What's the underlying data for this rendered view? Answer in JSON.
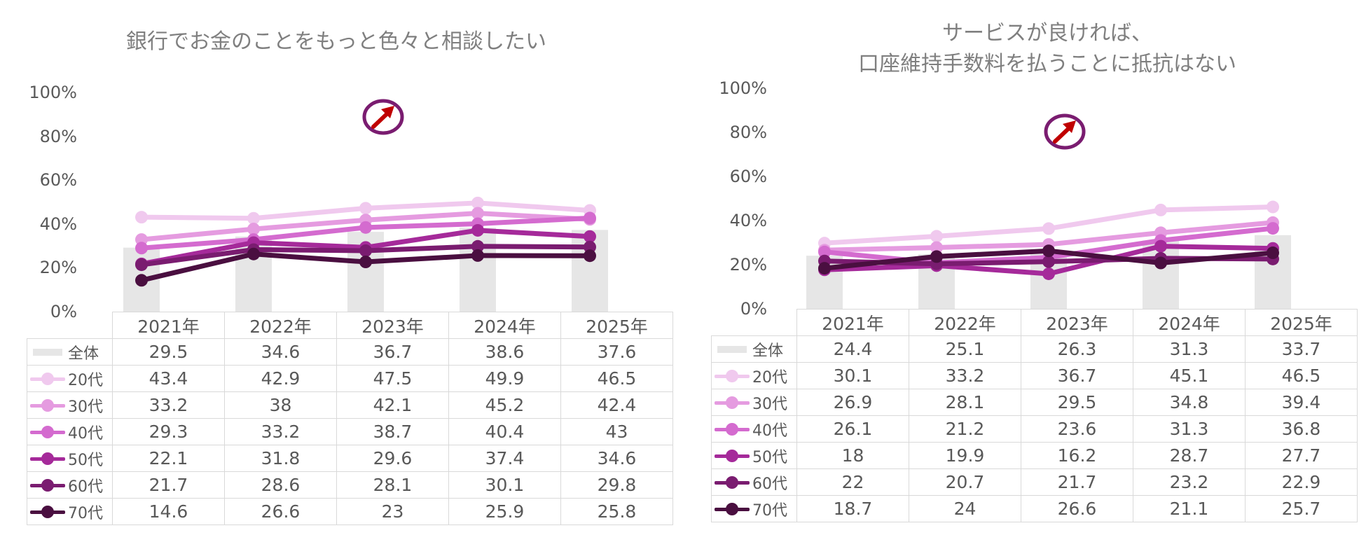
{
  "colors": {
    "bar": "#e6e6e6",
    "series": [
      "#f0c9ee",
      "#e59be0",
      "#d46bcf",
      "#a52a9a",
      "#7a1c70",
      "#4a0f40"
    ],
    "badge_ring": "#7a1c70",
    "badge_arrow": "#c00000"
  },
  "icons": {
    "trend": "up-right-arrow-icon"
  },
  "chart_data": [
    {
      "type": "bar+line",
      "title": "銀行でお金のことをもっと色々と相談したい",
      "categories": [
        "2021年",
        "2022年",
        "2023年",
        "2024年",
        "2025年"
      ],
      "ylim": [
        0,
        100
      ],
      "yticks": [
        "0%",
        "20%",
        "40%",
        "60%",
        "80%",
        "100%"
      ],
      "grid": false,
      "series": [
        {
          "name": "全体",
          "kind": "bar",
          "values": [
            29.5,
            34.6,
            36.7,
            38.6,
            37.6
          ]
        },
        {
          "name": "20代",
          "kind": "line",
          "values": [
            43.4,
            42.9,
            47.5,
            49.9,
            46.5
          ]
        },
        {
          "name": "30代",
          "kind": "line",
          "values": [
            33.2,
            38,
            42.1,
            45.2,
            42.4
          ]
        },
        {
          "name": "40代",
          "kind": "line",
          "values": [
            29.3,
            33.2,
            38.7,
            40.4,
            43
          ]
        },
        {
          "name": "50代",
          "kind": "line",
          "values": [
            22.1,
            31.8,
            29.6,
            37.4,
            34.6
          ]
        },
        {
          "name": "60代",
          "kind": "line",
          "values": [
            21.7,
            28.6,
            28.1,
            30.1,
            29.8
          ]
        },
        {
          "name": "70代",
          "kind": "line",
          "values": [
            14.6,
            26.6,
            23,
            25.9,
            25.8
          ]
        }
      ]
    },
    {
      "type": "bar+line",
      "title": "サービスが良ければ、\n口座維持手数料を払うことに抵抗はない",
      "categories": [
        "2021年",
        "2022年",
        "2023年",
        "2024年",
        "2025年"
      ],
      "ylim": [
        0,
        100
      ],
      "yticks": [
        "0%",
        "20%",
        "40%",
        "60%",
        "80%",
        "100%"
      ],
      "grid": false,
      "series": [
        {
          "name": "全体",
          "kind": "bar",
          "values": [
            24.4,
            25.1,
            26.3,
            31.3,
            33.7
          ]
        },
        {
          "name": "20代",
          "kind": "line",
          "values": [
            30.1,
            33.2,
            36.7,
            45.1,
            46.5
          ]
        },
        {
          "name": "30代",
          "kind": "line",
          "values": [
            26.9,
            28.1,
            29.5,
            34.8,
            39.4
          ]
        },
        {
          "name": "40代",
          "kind": "line",
          "values": [
            26.1,
            21.2,
            23.6,
            31.3,
            36.8
          ]
        },
        {
          "name": "50代",
          "kind": "line",
          "values": [
            18,
            19.9,
            16.2,
            28.7,
            27.7
          ]
        },
        {
          "name": "60代",
          "kind": "line",
          "values": [
            22,
            20.7,
            21.7,
            23.2,
            22.9
          ]
        },
        {
          "name": "70代",
          "kind": "line",
          "values": [
            18.7,
            24,
            26.6,
            21.1,
            25.7
          ]
        }
      ]
    }
  ]
}
